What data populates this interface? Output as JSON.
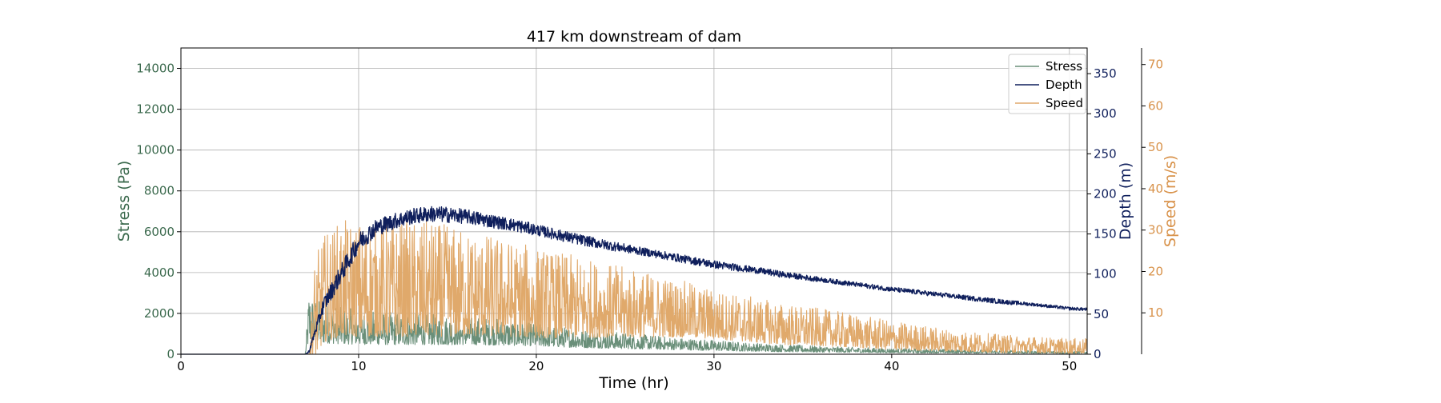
{
  "chart_data": {
    "type": "line",
    "title": "417 km downstream of dam",
    "xlabel": "Time (hr)",
    "xlim": [
      0,
      51
    ],
    "xticks": [
      0,
      10,
      20,
      30,
      40,
      50
    ],
    "grid": true,
    "legend_position": "top-right",
    "axes": {
      "stress": {
        "label": "Stress (Pa)",
        "side": "left",
        "color": "#3d6b4f",
        "ylim": [
          0,
          15000
        ],
        "ticks": [
          0,
          2000,
          4000,
          6000,
          8000,
          10000,
          12000,
          14000
        ]
      },
      "depth": {
        "label": "Depth (m)",
        "side": "right",
        "color": "#0f1f5c",
        "ylim": [
          0,
          382
        ],
        "ticks": [
          0,
          50,
          100,
          150,
          200,
          250,
          300,
          350
        ]
      },
      "speed": {
        "label": "Speed (m/s)",
        "side": "right-outer",
        "color": "#d8924a",
        "ylim": [
          0,
          74
        ],
        "ticks": [
          10,
          20,
          30,
          40,
          50,
          60,
          70
        ]
      }
    },
    "series": [
      {
        "name": "Stress",
        "axis": "stress",
        "color": "#6a8f79",
        "x": [
          0,
          7.0,
          7.2,
          7.5,
          8,
          9,
          10,
          12,
          14,
          16,
          18,
          20,
          22,
          24,
          26,
          28,
          30,
          32,
          34,
          36,
          38,
          40,
          42,
          44,
          46,
          48,
          50,
          51
        ],
        "y": [
          0,
          0,
          1300,
          1200,
          1100,
          1000,
          950,
          900,
          880,
          850,
          800,
          700,
          600,
          520,
          450,
          380,
          320,
          260,
          220,
          180,
          150,
          130,
          110,
          100,
          90,
          80,
          70,
          70
        ],
        "noise": [
          0,
          0,
          1300,
          1100,
          1000,
          900,
          850,
          800,
          750,
          700,
          650,
          550,
          480,
          420,
          360,
          300,
          260,
          210,
          180,
          150,
          130,
          110,
          100,
          90,
          80,
          70,
          60,
          60
        ]
      },
      {
        "name": "Depth",
        "axis": "depth",
        "color": "#0f1f5c",
        "x": [
          0,
          7.0,
          7.2,
          8,
          9,
          10,
          11,
          12,
          13,
          14,
          15,
          16,
          17,
          18,
          19,
          20,
          22,
          24,
          26,
          28,
          30,
          32,
          34,
          36,
          38,
          40,
          42,
          44,
          46,
          48,
          50,
          51
        ],
        "y": [
          0,
          0,
          3,
          60,
          100,
          140,
          158,
          166,
          172,
          175,
          174,
          172,
          168,
          164,
          160,
          155,
          145,
          136,
          128,
          120,
          112,
          106,
          99,
          93,
          87,
          81,
          76,
          71,
          66,
          62,
          57,
          56
        ],
        "noise": [
          0,
          0,
          2,
          10,
          12,
          12,
          11,
          10,
          10,
          10,
          10,
          9,
          9,
          8,
          8,
          7,
          7,
          6,
          5,
          5,
          5,
          4,
          4,
          3,
          3,
          3,
          3,
          3,
          3,
          2,
          2,
          2
        ]
      },
      {
        "name": "Speed",
        "axis": "speed",
        "color": "#e0a96b",
        "x": [
          0,
          7.0,
          7.2,
          7.5,
          8,
          9,
          10,
          12,
          14,
          16,
          18,
          20,
          22,
          24,
          26,
          28,
          30,
          32,
          34,
          36,
          38,
          40,
          42,
          44,
          46,
          48,
          50,
          51
        ],
        "y": [
          0,
          0,
          0,
          5,
          10,
          12,
          12,
          12,
          12,
          11.5,
          11,
          10,
          9.5,
          9,
          8.5,
          8,
          7,
          6,
          5,
          4.5,
          3.8,
          3,
          2.5,
          2,
          1.6,
          1.4,
          1.2,
          1.2
        ],
        "noise": [
          0,
          0,
          0,
          12,
          13,
          14,
          14,
          14,
          14,
          13,
          12,
          11,
          10,
          9,
          8,
          7,
          6,
          5.5,
          5,
          4.5,
          4,
          3.5,
          3,
          2.5,
          2.2,
          2,
          1.8,
          1.8
        ]
      }
    ]
  }
}
